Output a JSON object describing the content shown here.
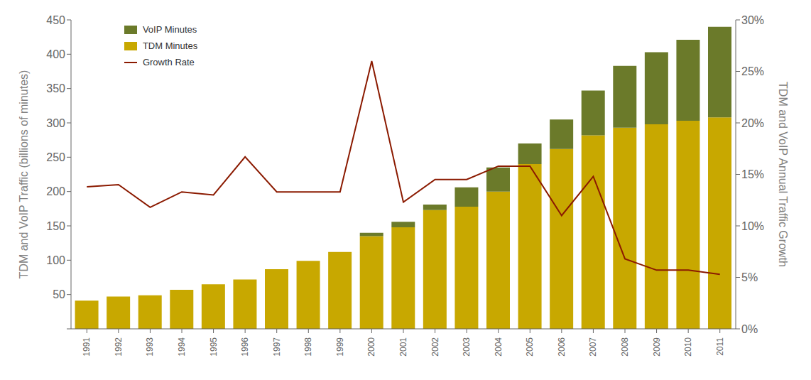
{
  "chart_data": {
    "type": "bar",
    "categories": [
      1991,
      1992,
      1993,
      1994,
      1995,
      1996,
      1997,
      1998,
      1999,
      2000,
      2001,
      2002,
      2003,
      2004,
      2005,
      2006,
      2007,
      2008,
      2009,
      2010,
      2011
    ],
    "stacked": true,
    "grid": false,
    "legend": "upper left",
    "ylabel": "TDM and VoIP Traffic (billions of minutes)",
    "y2label": "TDM and VoIP Annual Traffic Growth",
    "ylim": [
      0,
      450
    ],
    "yticks": [
      0,
      50,
      100,
      150,
      200,
      250,
      300,
      350,
      400,
      450
    ],
    "y2lim": [
      0,
      0.3
    ],
    "y2ticks": [
      {
        "value": 0.0,
        "label": "0%"
      },
      {
        "value": 0.05,
        "label": "5%"
      },
      {
        "value": 0.1,
        "label": "10%"
      },
      {
        "value": 0.15,
        "label": "15%"
      },
      {
        "value": 0.2,
        "label": "20%"
      },
      {
        "value": 0.25,
        "label": "25%"
      },
      {
        "value": 0.3,
        "label": "30%"
      }
    ],
    "series": [
      {
        "name": "TDM Minutes",
        "type": "bar",
        "color": "#C8A800",
        "values": [
          41,
          47,
          49,
          57,
          65,
          72,
          87,
          99,
          112,
          135,
          148,
          173,
          178,
          200,
          240,
          262,
          282,
          293,
          298,
          303,
          308
        ]
      },
      {
        "name": "VoIP Minutes",
        "type": "bar",
        "color": "#6B7A2A",
        "values": [
          0,
          0,
          0,
          0,
          0,
          0,
          0,
          0,
          0,
          5,
          8,
          8,
          28,
          35,
          30,
          43,
          65,
          90,
          105,
          118,
          132
        ]
      },
      {
        "name": "Growth Rate",
        "type": "line",
        "color": "#8B1A00",
        "axis": "y2",
        "values": [
          0.138,
          0.14,
          0.118,
          0.133,
          0.13,
          0.167,
          0.133,
          0.133,
          0.133,
          0.26,
          0.123,
          0.145,
          0.145,
          0.158,
          0.158,
          0.11,
          0.148,
          0.068,
          0.057,
          0.057,
          0.053
        ]
      }
    ]
  }
}
